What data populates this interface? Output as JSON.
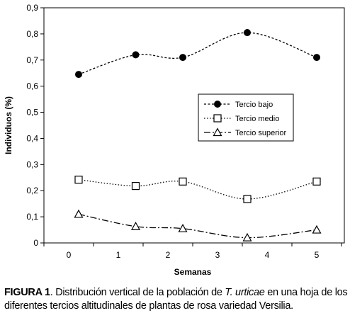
{
  "chart_data": {
    "type": "line",
    "xlabel": "Semanas",
    "ylabel": "Individuos (%)",
    "xlim": [
      0,
      5.5
    ],
    "ylim": [
      0,
      0.9
    ],
    "x_ticks": [
      "0",
      "1",
      "2",
      "3",
      "4",
      "5"
    ],
    "y_ticks": [
      "0",
      "0,1",
      "0,2",
      "0,3",
      "0,4",
      "0,5",
      "0,6",
      "0,7",
      "0,8",
      "0,9"
    ],
    "grid": false,
    "legend_position": "center-right",
    "series": [
      {
        "name": "Tercio bajo",
        "marker": "filled-circle",
        "line_style": "short-dash",
        "x": [
          0.7,
          1.85,
          2.8,
          4.1,
          5.5
        ],
        "values": [
          0.645,
          0.72,
          0.71,
          0.805,
          0.71
        ]
      },
      {
        "name": "Tercio medio",
        "marker": "open-square",
        "line_style": "dotted",
        "x": [
          0.7,
          1.85,
          2.8,
          4.1,
          5.5
        ],
        "values": [
          0.242,
          0.218,
          0.235,
          0.168,
          0.235
        ]
      },
      {
        "name": "Tercio superior",
        "marker": "open-triangle",
        "line_style": "dash-dot",
        "x": [
          0.7,
          1.85,
          2.8,
          4.1,
          5.5
        ],
        "values": [
          0.11,
          0.063,
          0.055,
          0.02,
          0.05
        ]
      }
    ]
  },
  "caption": {
    "label": "FIGURA 1",
    "text_before": ". Distribución vertical de la población de ",
    "species": "T. urticae",
    "text_after": " en una hoja de los diferentes tercios altitudinales de plantas de rosa variedad Versilia."
  }
}
